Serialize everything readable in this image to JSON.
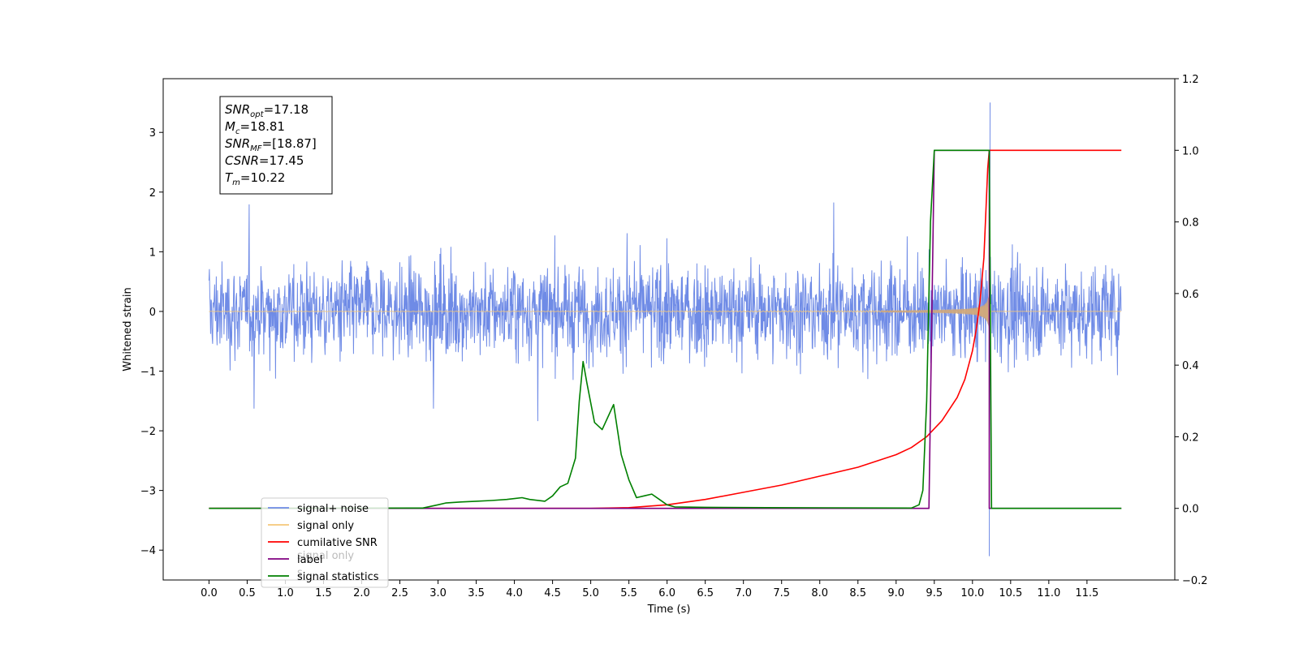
{
  "chart_data": {
    "type": "line",
    "xlabel": "Time (s)",
    "ylabel": "Whitened strain",
    "xlim": [
      -0.6,
      12.65
    ],
    "ylim_left": [
      -4.5,
      3.9
    ],
    "ylim_right": [
      -0.2,
      1.2
    ],
    "x_ticks": [
      "0.0",
      "0.5",
      "1.0",
      "1.5",
      "2.0",
      "2.5",
      "3.0",
      "3.5",
      "4.0",
      "4.5",
      "5.0",
      "5.5",
      "6.0",
      "6.5",
      "7.0",
      "7.5",
      "8.0",
      "8.5",
      "9.0",
      "9.5",
      "10.0",
      "10.5",
      "11.0",
      "11.5"
    ],
    "y_ticks_left": [
      "3",
      "2",
      "1",
      "0",
      "−1",
      "−2",
      "−3",
      "−4"
    ],
    "y_ticks_right": [
      "1.2",
      "1.0",
      "0.8",
      "0.6",
      "0.4",
      "0.2",
      "0.0",
      "−0.2"
    ],
    "grid": false,
    "legend_position": "lower-left",
    "annotation": {
      "lines": [
        {
          "base": "SNR",
          "sub": "opt",
          "value": "=17.18"
        },
        {
          "base": "M",
          "sub": "c",
          "value": "=18.81"
        },
        {
          "base": "SNR",
          "sub": "MF",
          "value": "=[18.87]"
        },
        {
          "base": "CSNR",
          "sub": "",
          "value": "=17.45"
        },
        {
          "base": "T",
          "sub": "m",
          "value": "=10.22"
        }
      ]
    },
    "series": [
      {
        "name": "signal+ noise",
        "axis": "left",
        "color": "#6f8be6",
        "description": "whitened noise envelope approx ±1.5 with spikes up to 3.5"
      },
      {
        "name": "signal only",
        "axis": "left",
        "color": "#f5c778",
        "description": "chirp growing until merger at 10.22 s"
      },
      {
        "name": "cumilative SNR",
        "axis": "right",
        "color": "#ff0000",
        "x": [
          0.0,
          5.0,
          5.5,
          6.0,
          6.5,
          7.0,
          7.5,
          8.0,
          8.5,
          9.0,
          9.2,
          9.4,
          9.6,
          9.8,
          9.9,
          10.0,
          10.05,
          10.1,
          10.15,
          10.2,
          10.22,
          11.95
        ],
        "y": [
          0.0,
          0.0,
          0.002,
          0.01,
          0.025,
          0.045,
          0.065,
          0.09,
          0.115,
          0.15,
          0.17,
          0.2,
          0.245,
          0.31,
          0.36,
          0.44,
          0.5,
          0.58,
          0.7,
          0.95,
          1.0,
          1.0
        ]
      },
      {
        "name": "label",
        "axis": "right",
        "color": "#800080",
        "x": [
          0.0,
          9.43,
          9.5,
          10.22,
          10.22,
          11.95
        ],
        "y": [
          0.0,
          0.0,
          1.0,
          1.0,
          0.0,
          0.0
        ]
      },
      {
        "name": "signal only",
        "axis": "right",
        "color": "#bbbbbb",
        "description": "legend entry drawn behind other entries"
      },
      {
        "name": "signal statistics",
        "axis": "right",
        "color": "#008000",
        "x": [
          0.0,
          2.8,
          3.0,
          3.1,
          3.3,
          3.5,
          3.7,
          3.9,
          4.1,
          4.2,
          4.4,
          4.5,
          4.6,
          4.7,
          4.8,
          4.85,
          4.9,
          4.95,
          5.05,
          5.15,
          5.3,
          5.4,
          5.5,
          5.6,
          5.7,
          5.8,
          5.9,
          6.0,
          6.1,
          6.5,
          7.3,
          9.2,
          9.3,
          9.35,
          9.4,
          9.45,
          9.5,
          10.22,
          10.25,
          11.95
        ],
        "y": [
          0.0,
          0.001,
          0.01,
          0.015,
          0.018,
          0.02,
          0.022,
          0.025,
          0.03,
          0.025,
          0.02,
          0.035,
          0.06,
          0.07,
          0.14,
          0.3,
          0.41,
          0.35,
          0.24,
          0.22,
          0.29,
          0.15,
          0.08,
          0.03,
          0.035,
          0.04,
          0.025,
          0.01,
          0.004,
          0.003,
          0.002,
          0.001,
          0.01,
          0.05,
          0.3,
          0.8,
          1.0,
          1.0,
          0.0,
          0.0
        ]
      }
    ]
  },
  "legend": [
    {
      "label": "signal+ noise",
      "color": "#6f8be6"
    },
    {
      "label": "signal only",
      "color": "#f5c778"
    },
    {
      "label": "cumilative SNR",
      "color": "#ff0000"
    },
    {
      "label": "label",
      "color": "#800080"
    },
    {
      "label": "signal statistics",
      "color": "#008000"
    }
  ],
  "legend_hidden": [
    {
      "label": "signal only",
      "color": "#bbbbbb"
    },
    {
      "label": "s",
      "color": "#bbbbbb"
    }
  ]
}
